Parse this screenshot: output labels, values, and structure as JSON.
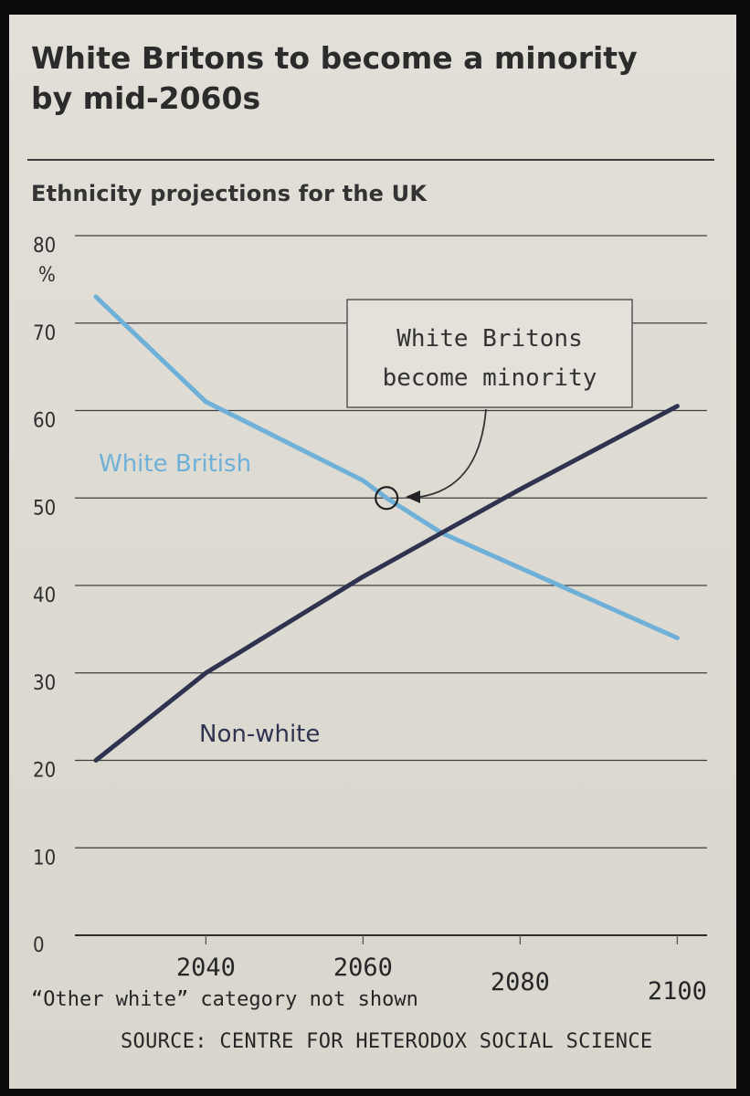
{
  "title": "White Britons to become a minority by mid-2060s",
  "chart_data": {
    "type": "line",
    "title": "White Britons to become a minority by mid-2060s",
    "subtitle": "Ethnicity projections for the UK",
    "ylabel": "%",
    "ylim": [
      0,
      80
    ],
    "yticks": [
      "0",
      "10",
      "20",
      "30",
      "40",
      "50",
      "60",
      "70",
      "80"
    ],
    "xlim": [
      2026,
      2101
    ],
    "xticks": [
      2040,
      2060,
      2080,
      2100
    ],
    "xtick_labels": [
      "2040",
      "2060",
      "2080",
      "2100"
    ],
    "grid": "horizontal",
    "series": [
      {
        "name": "White British",
        "color": "#6fb0d8",
        "x": [
          2026,
          2040,
          2060,
          2063,
          2070,
          2080,
          2100
        ],
        "y": [
          73,
          61,
          52,
          50,
          46,
          42,
          34
        ]
      },
      {
        "name": "Non-white",
        "color": "#2f3350",
        "x": [
          2026,
          2040,
          2060,
          2070,
          2080,
          2100
        ],
        "y": [
          20,
          30,
          41,
          46,
          51,
          60.5
        ]
      }
    ],
    "annotation": {
      "text_line1": "White Britons",
      "text_line2": "become minority",
      "x": 2063,
      "y": 50
    },
    "note": "“Other white” category not shown",
    "source": "SOURCE: CENTRE FOR HETERODOX SOCIAL SCIENCE"
  }
}
